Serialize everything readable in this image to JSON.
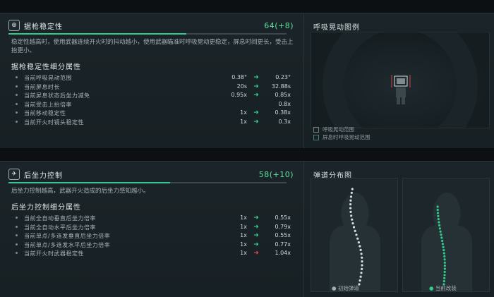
{
  "stability": {
    "icon": "crosshair-icon",
    "title": "据枪稳定性",
    "score": "64(+8)",
    "fill_percent": 64,
    "description": "稳定性越高时，使用武器连续开火时的抖动越小，使用武器瞄准时呼吸晃动更稳定，屏息时间更长，受击上抬更小。",
    "detail_title": "据枪稳定性细分属性",
    "rows": [
      {
        "label": "当前呼吸晃动范围",
        "from": "0.38°",
        "to": "0.23°",
        "arrow": "green"
      },
      {
        "label": "当前屏息时长",
        "from": "20s",
        "to": "32.88s",
        "arrow": "green"
      },
      {
        "label": "当前屏息状态后坐力减免",
        "from": "0.95x",
        "to": "0.85x",
        "arrow": "green"
      },
      {
        "label": "当前受击上抬倍率",
        "from": "",
        "to": "0.8x",
        "arrow": "none"
      },
      {
        "label": "当前移动稳定性",
        "from": "1x",
        "to": "0.38x",
        "arrow": "green"
      },
      {
        "label": "当前开火时镜头稳定性",
        "from": "1x",
        "to": "0.3x",
        "arrow": "green"
      }
    ]
  },
  "recoil": {
    "icon": "gun-icon",
    "title": "后坐力控制",
    "score": "58(+10)",
    "fill_percent": 58,
    "description": "后坐力控制越高，武器开火造成的后坐力感知越小。",
    "detail_title": "后坐力控制细分属性",
    "rows": [
      {
        "label": "当前全自动垂直后坐力倍率",
        "from": "1x",
        "to": "0.55x",
        "arrow": "green"
      },
      {
        "label": "当前全自动水平后坐力倍率",
        "from": "1x",
        "to": "0.79x",
        "arrow": "green"
      },
      {
        "label": "当前单点/多连发垂直后坐力倍率",
        "from": "1x",
        "to": "0.55x",
        "arrow": "green"
      },
      {
        "label": "当前单点/多连发水平后坐力倍率",
        "from": "1x",
        "to": "0.77x",
        "arrow": "green"
      },
      {
        "label": "当前开火时武器稳定性",
        "from": "1x",
        "to": "1.04x",
        "arrow": "red"
      }
    ]
  },
  "sway_panel": {
    "title": "呼吸晃动图例",
    "legend": [
      "呼吸晃动范围",
      "屏息时呼吸晃动范围"
    ]
  },
  "spread_panel": {
    "title": "弹道分布图",
    "left_label": "初始弹道",
    "right_label": "当前改装"
  },
  "colors": {
    "accent_green": "#32c98a",
    "red": "#e04a4a",
    "initial_dots": "#d7dcde"
  }
}
